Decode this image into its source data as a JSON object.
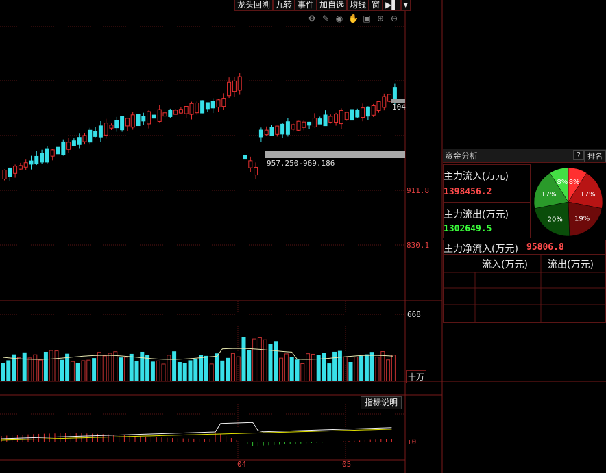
{
  "toolbar": {
    "items": [
      "龙头回溯",
      "九转",
      "事件",
      "加自选",
      "均线",
      "窗"
    ],
    "more_icon": "speaker-arrow-icon",
    "dropdown_icon": "chevron-down-icon"
  },
  "toolicons": [
    "gear-icon",
    "pencil-icon",
    "eye-icon",
    "hand-icon",
    "lock-icon",
    "zoom-in-icon",
    "zoom-out-icon"
  ],
  "price_axis": {
    "labels": [
      "911.8",
      "830.1"
    ]
  },
  "price_ranges": {
    "upper_tag": "104",
    "range_label": "957.250-969.186"
  },
  "volume_axis": {
    "top": "668",
    "unit": "十万"
  },
  "indicator": {
    "help_button": "指标说明",
    "zero_label": "+0"
  },
  "time_axis": {
    "labels": [
      "04",
      "05"
    ]
  },
  "fund_panel": {
    "title": "资金分析",
    "help": "?",
    "rank_button": "排名",
    "inflow_label": "主力流入(万元)",
    "inflow_value": "1398456.2",
    "outflow_label": "主力流出(万元)",
    "outflow_value": "1302649.5",
    "net_label": "主力净流入(万元)",
    "net_value": "95806.8",
    "table_headers": [
      "流入(万元)",
      "流出(万元)"
    ]
  },
  "pie": {
    "slices": [
      {
        "label": "8%",
        "value": 8,
        "color": "#ff3030"
      },
      {
        "label": "17%",
        "value": 17,
        "color": "#b81414"
      },
      {
        "label": "19%",
        "value": 19,
        "color": "#6e0a0a"
      },
      {
        "label": "20%",
        "value": 20,
        "color": "#0a4d0a"
      },
      {
        "label": "17%",
        "value": 17,
        "color": "#2a9a2a"
      },
      {
        "label": "8%",
        "value": 8,
        "color": "#44e044"
      }
    ]
  },
  "colors": {
    "up": "#e83030",
    "down": "#38e0e8",
    "ma": "#e8e8b0",
    "grid": "#5a1515",
    "up_bar": "#c03030"
  }
}
